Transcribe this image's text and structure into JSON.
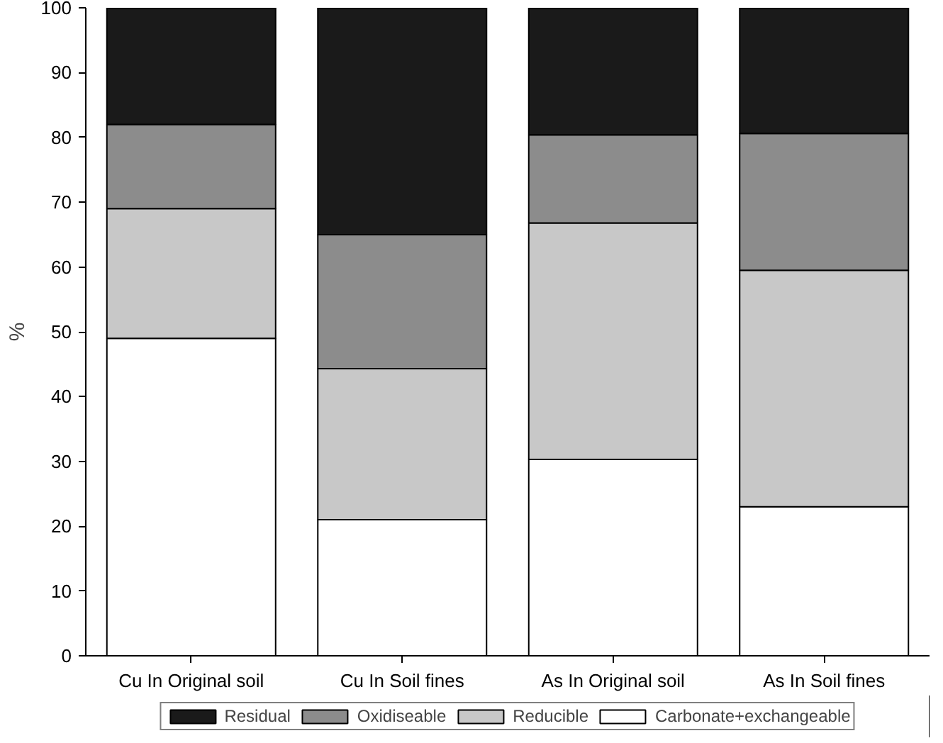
{
  "chart_data": {
    "type": "bar",
    "stacked": true,
    "ylabel": "%",
    "categories": [
      "Cu In Original soil",
      "Cu In Soil fines",
      "As In Original soil",
      "As In Soil fines"
    ],
    "series": [
      {
        "name": "Carbonate+exchangeable",
        "color": "#ffffff",
        "values": [
          49,
          21,
          30.3,
          23
        ]
      },
      {
        "name": "Reducible",
        "color": "#c8c8c8",
        "values": [
          20,
          23.3,
          36.5,
          36.5
        ]
      },
      {
        "name": "Oxidiseable",
        "color": "#8c8c8c",
        "values": [
          13,
          20.7,
          13.6,
          21.1
        ]
      },
      {
        "name": "Residual",
        "color": "#1a1a1a",
        "values": [
          18,
          35,
          19.6,
          19.4
        ]
      }
    ],
    "ylim": [
      0,
      100
    ],
    "yticks": [
      0,
      10,
      20,
      30,
      40,
      50,
      60,
      70,
      80,
      90,
      100
    ],
    "grid": false,
    "legend": "bottom"
  }
}
